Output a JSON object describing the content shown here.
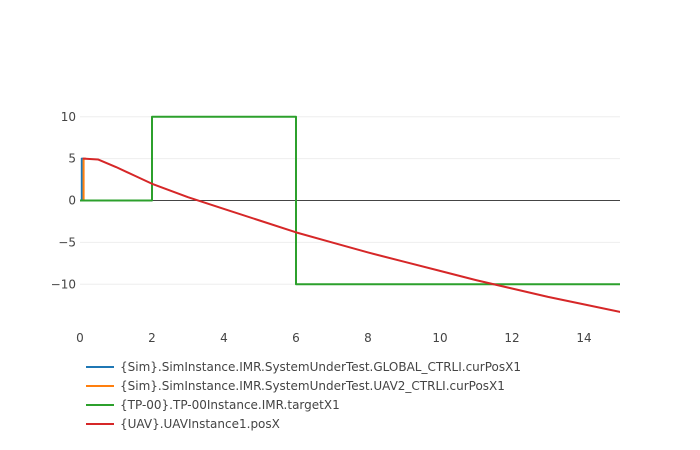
{
  "chart_data": {
    "type": "line",
    "title": "",
    "xlabel": "",
    "ylabel": "",
    "xlim": [
      0,
      15
    ],
    "ylim": [
      -14.5,
      12
    ],
    "x_ticks": [
      0,
      2,
      4,
      6,
      8,
      10,
      12,
      14
    ],
    "y_ticks": [
      10,
      5,
      0,
      -5,
      -10
    ],
    "x_tick_labels": [
      "0",
      "2",
      "4",
      "6",
      "8",
      "10",
      "12",
      "14"
    ],
    "y_tick_labels": [
      "10",
      "5",
      "0",
      "−5",
      "−10"
    ],
    "grid": true,
    "legend": "bottom-left",
    "series": [
      {
        "name": "{Sim}.SimInstance.IMR.SystemUnderTest.GLOBAL_CTRLI.curPosX1",
        "color": "#1f77b4",
        "x": [
          0.05,
          0.05,
          0.1
        ],
        "y": [
          0,
          5,
          5
        ]
      },
      {
        "name": "{Sim}.SimInstance.IMR.SystemUnderTest.UAV2_CTRLI.curPosX1",
        "color": "#ff7f0e",
        "x": [
          0.1,
          0.1,
          0.15
        ],
        "y": [
          0,
          5,
          5
        ]
      },
      {
        "name": "{TP-00}.TP-00Instance.IMR.targetX1",
        "color": "#2ca02c",
        "x": [
          0,
          2,
          2,
          6,
          6,
          15
        ],
        "y": [
          0,
          0,
          10,
          10,
          -10,
          -10
        ]
      },
      {
        "name": "{UAV}.UAVInstance1.posX",
        "color": "#d62728",
        "x": [
          0.1,
          0.5,
          1,
          1.5,
          2,
          3,
          4,
          5,
          6,
          7,
          8,
          9,
          10,
          11,
          12,
          13,
          14,
          15
        ],
        "y": [
          5,
          4.9,
          4,
          3,
          2,
          0.4,
          -1.0,
          -2.4,
          -3.8,
          -5.0,
          -6.2,
          -7.3,
          -8.4,
          -9.5,
          -10.5,
          -11.5,
          -12.4,
          -13.3
        ]
      }
    ]
  }
}
